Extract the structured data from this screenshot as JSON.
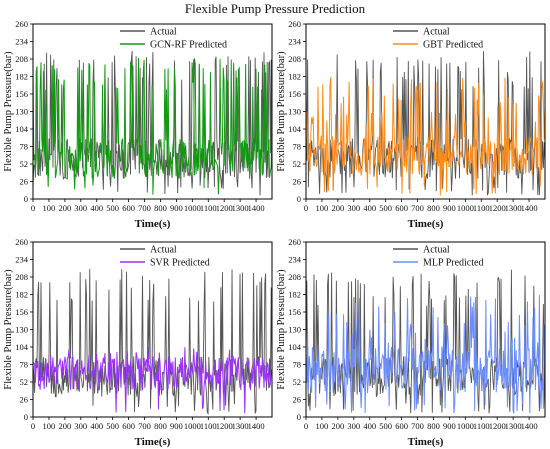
{
  "figure": {
    "title": "Flexible Pump Pressure Prediction"
  },
  "colors": {
    "actual": "#555555",
    "gcn_rf": "#139a13",
    "gbt": "#ff8c1a",
    "svr": "#9b30ff",
    "mlp": "#6a8dff"
  },
  "chart_data": [
    {
      "type": "line",
      "title": "",
      "xlabel": "Time(s)",
      "ylabel": "Flexible Pump Pressure(bar)",
      "xlim": [
        0,
        1500
      ],
      "ylim": [
        0,
        260
      ],
      "xticks": [
        0,
        100,
        200,
        300,
        400,
        500,
        600,
        700,
        800,
        900,
        1000,
        1100,
        1200,
        1300,
        1400
      ],
      "yticks": [
        0,
        26,
        52,
        78,
        104,
        130,
        156,
        182,
        208,
        234,
        260
      ],
      "legend": "top-left",
      "series": [
        {
          "name": "Actual",
          "color": "#555555",
          "baseline": 60,
          "spread": 30,
          "peaks": [
            182,
            208,
            220
          ]
        },
        {
          "name": "GCN-RF Predicted",
          "color": "#139a13",
          "baseline": 60,
          "spread": 30,
          "peaks": [
            182,
            208,
            210
          ]
        }
      ]
    },
    {
      "type": "line",
      "title": "",
      "xlabel": "Time(s)",
      "ylabel": "Flexible Pump Pressure(bar)",
      "xlim": [
        0,
        1500
      ],
      "ylim": [
        0,
        260
      ],
      "xticks": [
        0,
        100,
        200,
        300,
        400,
        500,
        600,
        700,
        800,
        900,
        1000,
        1100,
        1200,
        1300,
        1400
      ],
      "yticks": [
        0,
        26,
        52,
        78,
        104,
        130,
        156,
        182,
        208,
        234,
        260
      ],
      "legend": "top-left",
      "series": [
        {
          "name": "Actual",
          "color": "#555555",
          "baseline": 60,
          "spread": 30,
          "peaks": [
            182,
            208,
            220
          ]
        },
        {
          "name": "GBT Predicted",
          "color": "#ff8c1a",
          "baseline": 65,
          "spread": 30,
          "peaks": [
            130,
            156,
            182
          ]
        }
      ]
    },
    {
      "type": "line",
      "title": "",
      "xlabel": "Time(s)",
      "ylabel": "Flexible Pump Pressure(bar)",
      "xlim": [
        0,
        1500
      ],
      "ylim": [
        0,
        260
      ],
      "xticks": [
        0,
        100,
        200,
        300,
        400,
        500,
        600,
        700,
        800,
        900,
        1000,
        1100,
        1200,
        1300,
        1400
      ],
      "yticks": [
        0,
        26,
        52,
        78,
        104,
        130,
        156,
        182,
        208,
        234,
        260
      ],
      "legend": "top-left",
      "series": [
        {
          "name": "Actual",
          "color": "#555555",
          "baseline": 60,
          "spread": 30,
          "peaks": [
            182,
            208,
            220
          ]
        },
        {
          "name": "SVR Predicted",
          "color": "#9b30ff",
          "baseline": 65,
          "spread": 25,
          "peaks": [
            88,
            96,
            104
          ]
        }
      ]
    },
    {
      "type": "line",
      "title": "",
      "xlabel": "Time(s)",
      "ylabel": "Flexible Pump Pressure(bar)",
      "xlim": [
        0,
        1500
      ],
      "ylim": [
        0,
        260
      ],
      "xticks": [
        0,
        100,
        200,
        300,
        400,
        500,
        600,
        700,
        800,
        900,
        1000,
        1100,
        1200,
        1300,
        1400
      ],
      "yticks": [
        0,
        26,
        52,
        78,
        104,
        130,
        156,
        182,
        208,
        234,
        260
      ],
      "legend": "top-left",
      "series": [
        {
          "name": "Actual",
          "color": "#555555",
          "baseline": 60,
          "spread": 30,
          "peaks": [
            182,
            208,
            220
          ]
        },
        {
          "name": "MLP Predicted",
          "color": "#6a8dff",
          "baseline": 70,
          "spread": 35,
          "peaks": [
            130,
            156,
            182
          ]
        }
      ]
    }
  ]
}
